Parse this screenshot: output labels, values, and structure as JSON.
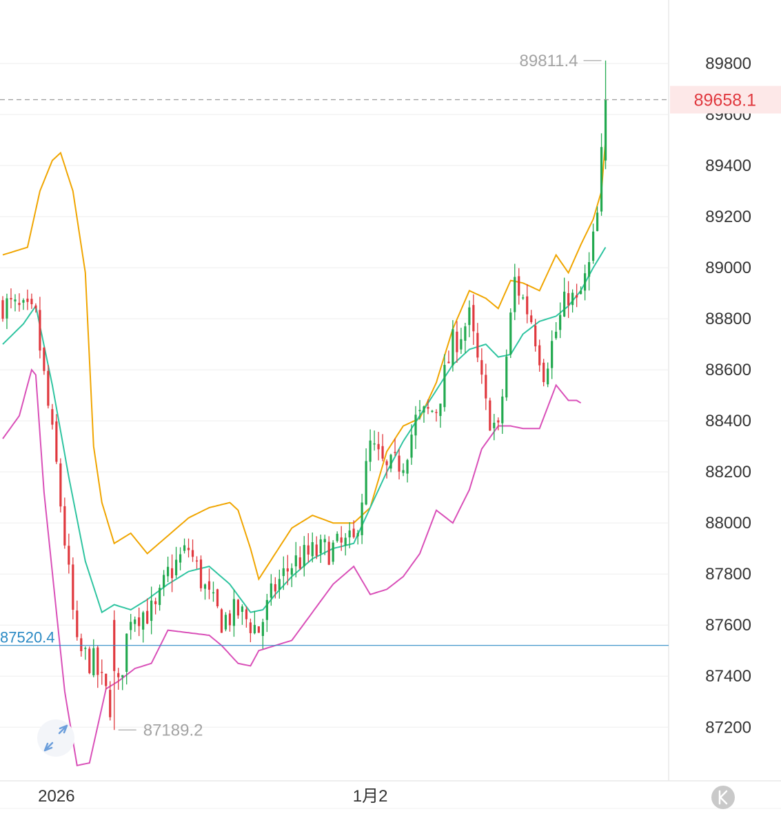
{
  "chart_data": {
    "type": "candlestick",
    "ylim": [
      87050,
      89850
    ],
    "y_ticks": [
      89800,
      89600,
      89400,
      89200,
      89000,
      88800,
      88600,
      88400,
      88200,
      88000,
      87800,
      87600,
      87400,
      87200
    ],
    "x_ticks": [
      {
        "label": "2026",
        "index": 13
      },
      {
        "label": "1月2",
        "index": 89
      }
    ],
    "last_price": {
      "value": 89658.1,
      "label": "89658.1",
      "color": "#e0383e"
    },
    "reference_line": {
      "value": 87520.4,
      "label": "87520.4",
      "color": "#2b8ac4"
    },
    "high_annotation": {
      "value": 89811.4,
      "label": "89811.4",
      "index": 146
    },
    "low_annotation": {
      "value": 87189.2,
      "label": "87189.2",
      "index": 27
    },
    "colors": {
      "up": "#22a94f",
      "down": "#e0383e",
      "upper_band": "#f0a500",
      "middle_band": "#2ec4a0",
      "lower_band": "#d94fb8",
      "grid": "#eeeeee"
    },
    "candles_anchor_close": [
      [
        0,
        88860
      ],
      [
        8,
        88800
      ],
      [
        13,
        88220
      ],
      [
        18,
        87500
      ],
      [
        22,
        87450
      ],
      [
        27,
        87250
      ],
      [
        31,
        87650
      ],
      [
        37,
        87650
      ],
      [
        40,
        87800
      ],
      [
        45,
        87900
      ],
      [
        50,
        87700
      ],
      [
        53,
        87620
      ],
      [
        57,
        87650
      ],
      [
        62,
        87580
      ],
      [
        66,
        87750
      ],
      [
        70,
        87840
      ],
      [
        75,
        87880
      ],
      [
        80,
        87900
      ],
      [
        85,
        87920
      ],
      [
        89,
        88300
      ],
      [
        93,
        88200
      ],
      [
        97,
        88250
      ],
      [
        100,
        88400
      ],
      [
        105,
        88450
      ],
      [
        109,
        88700
      ],
      [
        113,
        88800
      ],
      [
        117,
        88450
      ],
      [
        120,
        88350
      ],
      [
        124,
        88950
      ],
      [
        128,
        88800
      ],
      [
        131,
        88600
      ],
      [
        134,
        88750
      ],
      [
        137,
        88900
      ],
      [
        139,
        88850
      ],
      [
        142,
        89000
      ],
      [
        144,
        89200
      ],
      [
        146,
        89658.1
      ]
    ],
    "upper_band": [
      [
        0,
        89050
      ],
      [
        6,
        89080
      ],
      [
        9,
        89300
      ],
      [
        12,
        89420
      ],
      [
        14,
        89450
      ],
      [
        17,
        89300
      ],
      [
        20,
        88980
      ],
      [
        22,
        88300
      ],
      [
        24,
        88080
      ],
      [
        27,
        87920
      ],
      [
        31,
        87960
      ],
      [
        35,
        87880
      ],
      [
        40,
        87950
      ],
      [
        45,
        88020
      ],
      [
        50,
        88060
      ],
      [
        55,
        88080
      ],
      [
        57,
        88050
      ],
      [
        60,
        87900
      ],
      [
        62,
        87780
      ],
      [
        66,
        87880
      ],
      [
        70,
        87980
      ],
      [
        75,
        88030
      ],
      [
        80,
        88000
      ],
      [
        85,
        88000
      ],
      [
        89,
        88060
      ],
      [
        93,
        88280
      ],
      [
        97,
        88380
      ],
      [
        101,
        88410
      ],
      [
        105,
        88550
      ],
      [
        109,
        88760
      ],
      [
        113,
        88910
      ],
      [
        117,
        88880
      ],
      [
        120,
        88840
      ],
      [
        123,
        88950
      ],
      [
        126,
        88940
      ],
      [
        130,
        88910
      ],
      [
        134,
        89050
      ],
      [
        137,
        88980
      ],
      [
        140,
        89090
      ],
      [
        143,
        89190
      ],
      [
        145,
        89300
      ],
      [
        146,
        89500
      ]
    ],
    "middle_band": [
      [
        0,
        88700
      ],
      [
        5,
        88780
      ],
      [
        8,
        88850
      ],
      [
        12,
        88540
      ],
      [
        16,
        88180
      ],
      [
        20,
        87850
      ],
      [
        24,
        87650
      ],
      [
        27,
        87680
      ],
      [
        31,
        87660
      ],
      [
        35,
        87700
      ],
      [
        40,
        87760
      ],
      [
        45,
        87810
      ],
      [
        50,
        87830
      ],
      [
        55,
        87760
      ],
      [
        60,
        87650
      ],
      [
        63,
        87660
      ],
      [
        66,
        87720
      ],
      [
        70,
        87790
      ],
      [
        75,
        87860
      ],
      [
        80,
        87900
      ],
      [
        85,
        87920
      ],
      [
        89,
        88060
      ],
      [
        93,
        88200
      ],
      [
        97,
        88320
      ],
      [
        101,
        88420
      ],
      [
        105,
        88520
      ],
      [
        109,
        88620
      ],
      [
        113,
        88680
      ],
      [
        117,
        88700
      ],
      [
        120,
        88650
      ],
      [
        123,
        88660
      ],
      [
        126,
        88740
      ],
      [
        130,
        88790
      ],
      [
        134,
        88810
      ],
      [
        137,
        88850
      ],
      [
        140,
        88910
      ],
      [
        143,
        89000
      ],
      [
        146,
        89080
      ]
    ],
    "lower_band": [
      [
        0,
        88330
      ],
      [
        4,
        88420
      ],
      [
        7,
        88600
      ],
      [
        8,
        88580
      ],
      [
        10,
        88120
      ],
      [
        13,
        87650
      ],
      [
        15,
        87340
      ],
      [
        18,
        87050
      ],
      [
        21,
        87060
      ],
      [
        25,
        87350
      ],
      [
        28,
        87380
      ],
      [
        32,
        87430
      ],
      [
        36,
        87450
      ],
      [
        40,
        87580
      ],
      [
        45,
        87570
      ],
      [
        50,
        87560
      ],
      [
        53,
        87520
      ],
      [
        57,
        87450
      ],
      [
        60,
        87440
      ],
      [
        62,
        87500
      ],
      [
        66,
        87520
      ],
      [
        70,
        87540
      ],
      [
        75,
        87650
      ],
      [
        80,
        87760
      ],
      [
        85,
        87830
      ],
      [
        89,
        87720
      ],
      [
        93,
        87740
      ],
      [
        97,
        87790
      ],
      [
        101,
        87880
      ],
      [
        105,
        88050
      ],
      [
        109,
        88000
      ],
      [
        113,
        88130
      ],
      [
        116,
        88290
      ],
      [
        120,
        88380
      ],
      [
        123,
        88380
      ],
      [
        126,
        88370
      ],
      [
        130,
        88370
      ],
      [
        134,
        88540
      ],
      [
        137,
        88480
      ],
      [
        139,
        88480
      ],
      [
        140,
        88470
      ]
    ]
  }
}
